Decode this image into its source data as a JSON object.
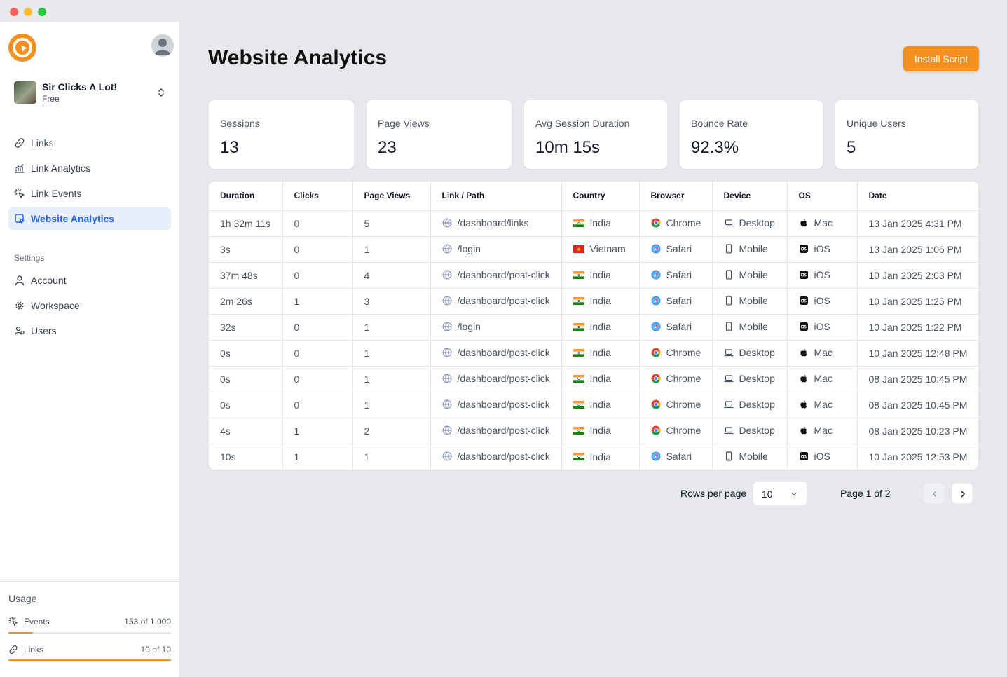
{
  "window": {
    "controls": [
      "close",
      "minimize",
      "maximize"
    ]
  },
  "sidebar": {
    "workspace": {
      "name": "Sir Clicks A Lot!",
      "plan": "Free"
    },
    "nav": [
      {
        "label": "Links",
        "icon": "link-icon"
      },
      {
        "label": "Link Analytics",
        "icon": "analytics-icon"
      },
      {
        "label": "Link Events",
        "icon": "pointer-click-icon"
      },
      {
        "label": "Website Analytics",
        "icon": "website-analytics-icon",
        "active": true
      }
    ],
    "settings_heading": "Settings",
    "settings_nav": [
      {
        "label": "Account",
        "icon": "user-icon"
      },
      {
        "label": "Workspace",
        "icon": "gear-icon"
      },
      {
        "label": "Users",
        "icon": "users-icon"
      }
    ],
    "usage": {
      "title": "Usage",
      "items": [
        {
          "label": "Events",
          "count": "153 of 1,000",
          "fraction": 0.153
        },
        {
          "label": "Links",
          "count": "10 of 10",
          "fraction": 1.0
        }
      ]
    }
  },
  "header": {
    "title": "Website Analytics",
    "install_button": "Install Script"
  },
  "stats": [
    {
      "label": "Sessions",
      "value": "13"
    },
    {
      "label": "Page Views",
      "value": "23"
    },
    {
      "label": "Avg Session Duration",
      "value": "10m 15s"
    },
    {
      "label": "Bounce Rate",
      "value": "92.3%"
    },
    {
      "label": "Unique Users",
      "value": "5"
    }
  ],
  "table": {
    "columns": [
      "Duration",
      "Clicks",
      "Page Views",
      "Link / Path",
      "Country",
      "Browser",
      "Device",
      "OS",
      "Date"
    ],
    "rows": [
      {
        "duration": "1h 32m 11s",
        "clicks": "0",
        "page_views": "5",
        "path": "/dashboard/links",
        "country": "India",
        "browser": "Chrome",
        "device": "Desktop",
        "os": "Mac",
        "date": "13 Jan 2025 4:31 PM"
      },
      {
        "duration": "3s",
        "clicks": "0",
        "page_views": "1",
        "path": "/login",
        "country": "Vietnam",
        "browser": "Safari",
        "device": "Mobile",
        "os": "iOS",
        "date": "13 Jan 2025 1:06 PM"
      },
      {
        "duration": "37m 48s",
        "clicks": "0",
        "page_views": "4",
        "path": "/dashboard/post-click",
        "country": "India",
        "browser": "Safari",
        "device": "Mobile",
        "os": "iOS",
        "date": "10 Jan 2025 2:03 PM"
      },
      {
        "duration": "2m 26s",
        "clicks": "1",
        "page_views": "3",
        "path": "/dashboard/post-click",
        "country": "India",
        "browser": "Safari",
        "device": "Mobile",
        "os": "iOS",
        "date": "10 Jan 2025 1:25 PM"
      },
      {
        "duration": "32s",
        "clicks": "0",
        "page_views": "1",
        "path": "/login",
        "country": "India",
        "browser": "Safari",
        "device": "Mobile",
        "os": "iOS",
        "date": "10 Jan 2025 1:22 PM"
      },
      {
        "duration": "0s",
        "clicks": "0",
        "page_views": "1",
        "path": "/dashboard/post-click",
        "country": "India",
        "browser": "Chrome",
        "device": "Desktop",
        "os": "Mac",
        "date": "10 Jan 2025 12:48 PM"
      },
      {
        "duration": "0s",
        "clicks": "0",
        "page_views": "1",
        "path": "/dashboard/post-click",
        "country": "India",
        "browser": "Chrome",
        "device": "Desktop",
        "os": "Mac",
        "date": "08 Jan 2025 10:45 PM"
      },
      {
        "duration": "0s",
        "clicks": "0",
        "page_views": "1",
        "path": "/dashboard/post-click",
        "country": "India",
        "browser": "Chrome",
        "device": "Desktop",
        "os": "Mac",
        "date": "08 Jan 2025 10:45 PM"
      },
      {
        "duration": "4s",
        "clicks": "1",
        "page_views": "2",
        "path": "/dashboard/post-click",
        "country": "India",
        "browser": "Chrome",
        "device": "Desktop",
        "os": "Mac",
        "date": "08 Jan 2025 10:23 PM"
      },
      {
        "duration": "10s",
        "clicks": "1",
        "page_views": "1",
        "path": "/dashboard/post-click",
        "country": "India",
        "browser": "Safari",
        "device": "Mobile",
        "os": "iOS",
        "date": "10 Jan 2025 12:53 PM"
      }
    ]
  },
  "pagination": {
    "rows_per_page_label": "Rows per page",
    "rows_per_page": "10",
    "page_label": "Page 1 of 2"
  },
  "colors": {
    "accent": "#f5901e",
    "active_nav": "#2563eb",
    "active_nav_bg": "#e8effb"
  }
}
